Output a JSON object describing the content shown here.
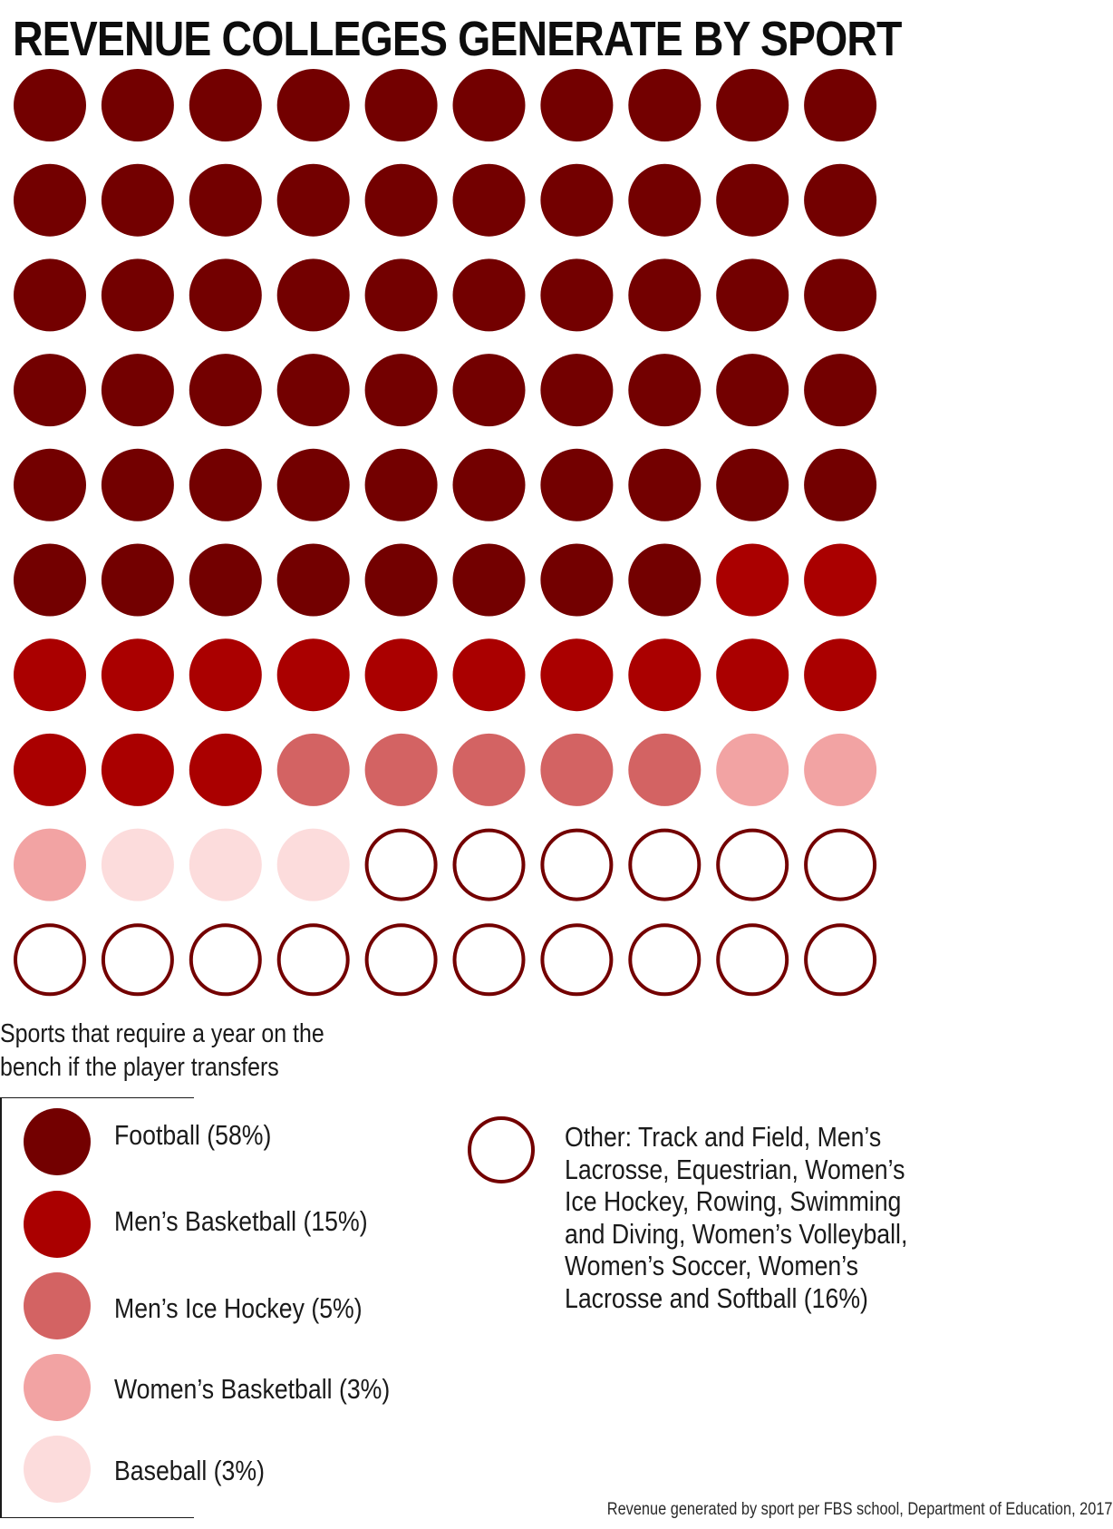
{
  "chart_data": {
    "type": "waffle",
    "title": "REVENUE COLLEGES GENERATE BY SPORT",
    "grid": {
      "rows": 10,
      "cols": 10,
      "total_units": 100
    },
    "categories": [
      {
        "key": "football",
        "name": "Football",
        "value": 58,
        "color": "#730000",
        "style": "filled",
        "requires_bench_year": true
      },
      {
        "key": "mbb",
        "name": "Men’s Basketball",
        "value": 15,
        "color": "#aa0000",
        "style": "filled",
        "requires_bench_year": true
      },
      {
        "key": "mhockey",
        "name": "Men’s Ice Hockey",
        "value": 5,
        "color": "#d36363",
        "style": "filled",
        "requires_bench_year": true
      },
      {
        "key": "wbb",
        "name": "Women’s Basketball",
        "value": 3,
        "color": "#f2a3a3",
        "style": "filled",
        "requires_bench_year": true
      },
      {
        "key": "baseball",
        "name": "Baseball",
        "value": 3,
        "color": "#fcdcdc",
        "style": "filled",
        "requires_bench_year": true
      },
      {
        "key": "other",
        "name": "Other",
        "value": 16,
        "color": "#730000",
        "style": "outline",
        "requires_bench_year": false
      }
    ]
  },
  "bench_note": "Sports that require a year on the bench if the player transfers",
  "legend": {
    "football_label": "Football (58%)",
    "mbb_label": "Men’s Basketball (15%)",
    "mhockey_label": "Men’s Ice Hockey (5%)",
    "wbb_label": "Women’s Basketball (3%)",
    "baseball_label": "Baseball (3%)",
    "other_label": "Other: Track and Field, Men’s Lacrosse, Equestrian, Women’s Ice Hockey, Rowing, Swimming and Diving, Women’s Volleyball, Women’s Soccer, Women’s Lacrosse and Softball (16%)"
  },
  "source": "Revenue generated by sport per FBS school, Department of Education, 2017"
}
